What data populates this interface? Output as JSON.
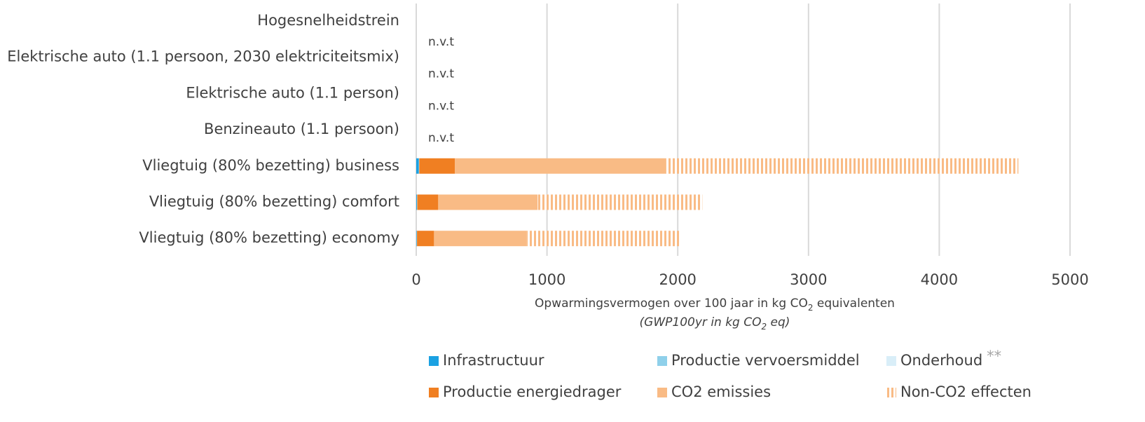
{
  "chart_data": {
    "type": "stacked_barh",
    "categories": [
      "Hogesnelheidstrein",
      "Elektrische auto (1.1 persoon, 2030 elektriciteitsmix)",
      "Elektrische auto (1.1 person)",
      "Benzineauto (1.1 persoon)",
      "Vliegtuig (80% bezetting) business",
      "Vliegtuig (80% bezetting) comfort",
      "Vliegtuig (80% bezetting) economy"
    ],
    "series": [
      {
        "name": "Infrastructuur",
        "color": "#1ba1e2",
        "values": [
          null,
          null,
          null,
          null,
          20,
          5,
          3
        ]
      },
      {
        "name": "Productie vervoersmiddel",
        "color": "#8fd0ea",
        "values": [
          null,
          null,
          null,
          null,
          2,
          2,
          2
        ]
      },
      {
        "name": "Onderhoud",
        "color": "#d9eef8",
        "values": [
          null,
          null,
          null,
          null,
          1,
          1,
          1
        ]
      },
      {
        "name": "Productie energiedrager",
        "color": "#f07f22",
        "values": [
          null,
          null,
          null,
          null,
          273,
          160,
          130
        ]
      },
      {
        "name": "CO2 emissies",
        "color": "#f9bb85",
        "values": [
          null,
          null,
          null,
          null,
          1613,
          761,
          707
        ]
      },
      {
        "name": "Non-CO2 effecten",
        "color": "#f9bb85",
        "hatch": "vertical",
        "values": [
          null,
          null,
          null,
          null,
          2696,
          1259,
          1174
        ]
      }
    ],
    "annotations": [
      "n.v.t",
      "n.v.t",
      "n.v.t",
      "n.v.t"
    ],
    "legend_note": "**",
    "x_label": [
      "Opwarmingsvermogen over 100 jaar in kg CO",
      "2",
      " equivalenten"
    ],
    "x_label_2": [
      "(GWP100yr in kg CO",
      "2",
      " eq)"
    ],
    "xlim": [
      0,
      5000
    ],
    "xticks": [
      0,
      1000,
      2000,
      3000,
      4000,
      5000
    ],
    "grid": true,
    "legend": "bottom"
  }
}
